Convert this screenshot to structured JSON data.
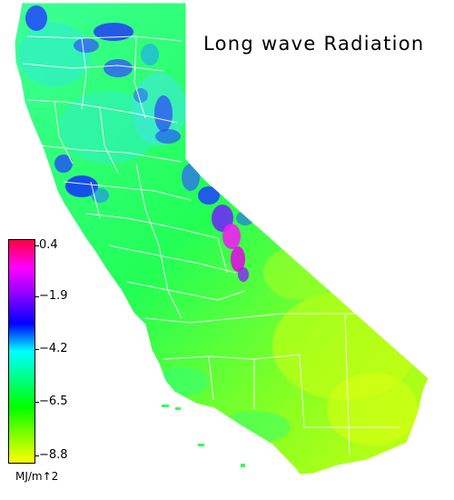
{
  "title": "Long wave Radiation",
  "legend": {
    "tick_labels": [
      "0.4",
      "−1.9",
      "−4.2",
      "−6.5",
      "−8.8"
    ],
    "units": "MJ/m↑2",
    "range": [
      -8.8,
      0.4
    ],
    "colors": [
      "#ff0040",
      "#ff00ff",
      "#8800ff",
      "#0000ff",
      "#00ffff",
      "#00ff80",
      "#00ff00",
      "#80ff00",
      "#ffff00"
    ]
  },
  "map": {
    "region": "California",
    "background": "#ffffff",
    "boundary_color": "#ffffff"
  }
}
